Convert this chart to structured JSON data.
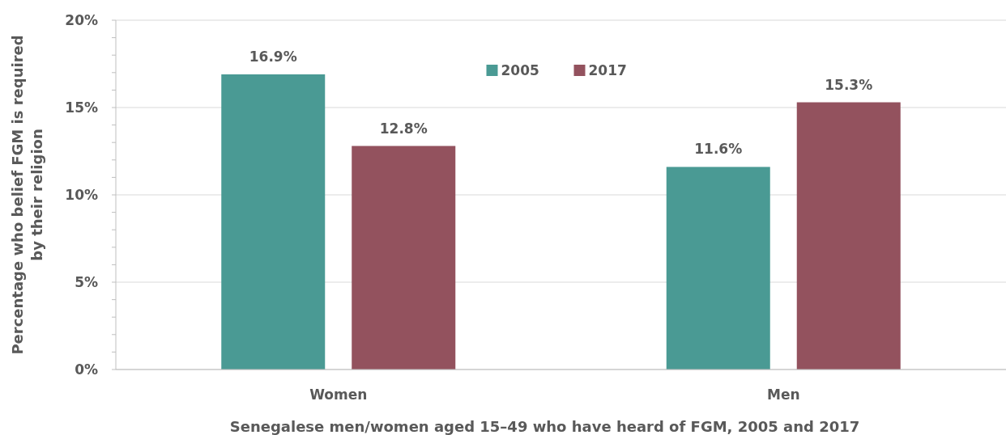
{
  "chart_data": {
    "type": "bar",
    "xlabel": "Senegalese men/women aged 15–49 who have heard of FGM, 2005 and 2017",
    "ylabel": "Percentage who belief FGM is required\nby their religion",
    "categories": [
      "Women",
      "Men"
    ],
    "series": [
      {
        "name": "2005",
        "color": "#4a9a94",
        "values": [
          16.9,
          11.6
        ],
        "value_labels": [
          "16.9%",
          "11.6%"
        ]
      },
      {
        "name": "2017",
        "color": "#93525e",
        "values": [
          12.8,
          15.3
        ],
        "value_labels": [
          "12.8%",
          "15.3%"
        ]
      }
    ],
    "ylim": [
      0,
      20
    ],
    "yticks": [
      {
        "value": 0,
        "label": "0%"
      },
      {
        "value": 1,
        "label": null
      },
      {
        "value": 2,
        "label": null
      },
      {
        "value": 3,
        "label": null
      },
      {
        "value": 4,
        "label": null
      },
      {
        "value": 5,
        "label": "5%"
      },
      {
        "value": 6,
        "label": null
      },
      {
        "value": 7,
        "label": null
      },
      {
        "value": 8,
        "label": null
      },
      {
        "value": 9,
        "label": null
      },
      {
        "value": 10,
        "label": "10%"
      },
      {
        "value": 11,
        "label": null
      },
      {
        "value": 12,
        "label": null
      },
      {
        "value": 13,
        "label": null
      },
      {
        "value": 14,
        "label": null
      },
      {
        "value": 15,
        "label": "15%"
      },
      {
        "value": 16,
        "label": null
      },
      {
        "value": 17,
        "label": null
      },
      {
        "value": 18,
        "label": null
      },
      {
        "value": 19,
        "label": null
      },
      {
        "value": 20,
        "label": "20%"
      }
    ],
    "grid": "y",
    "legend": "top"
  }
}
